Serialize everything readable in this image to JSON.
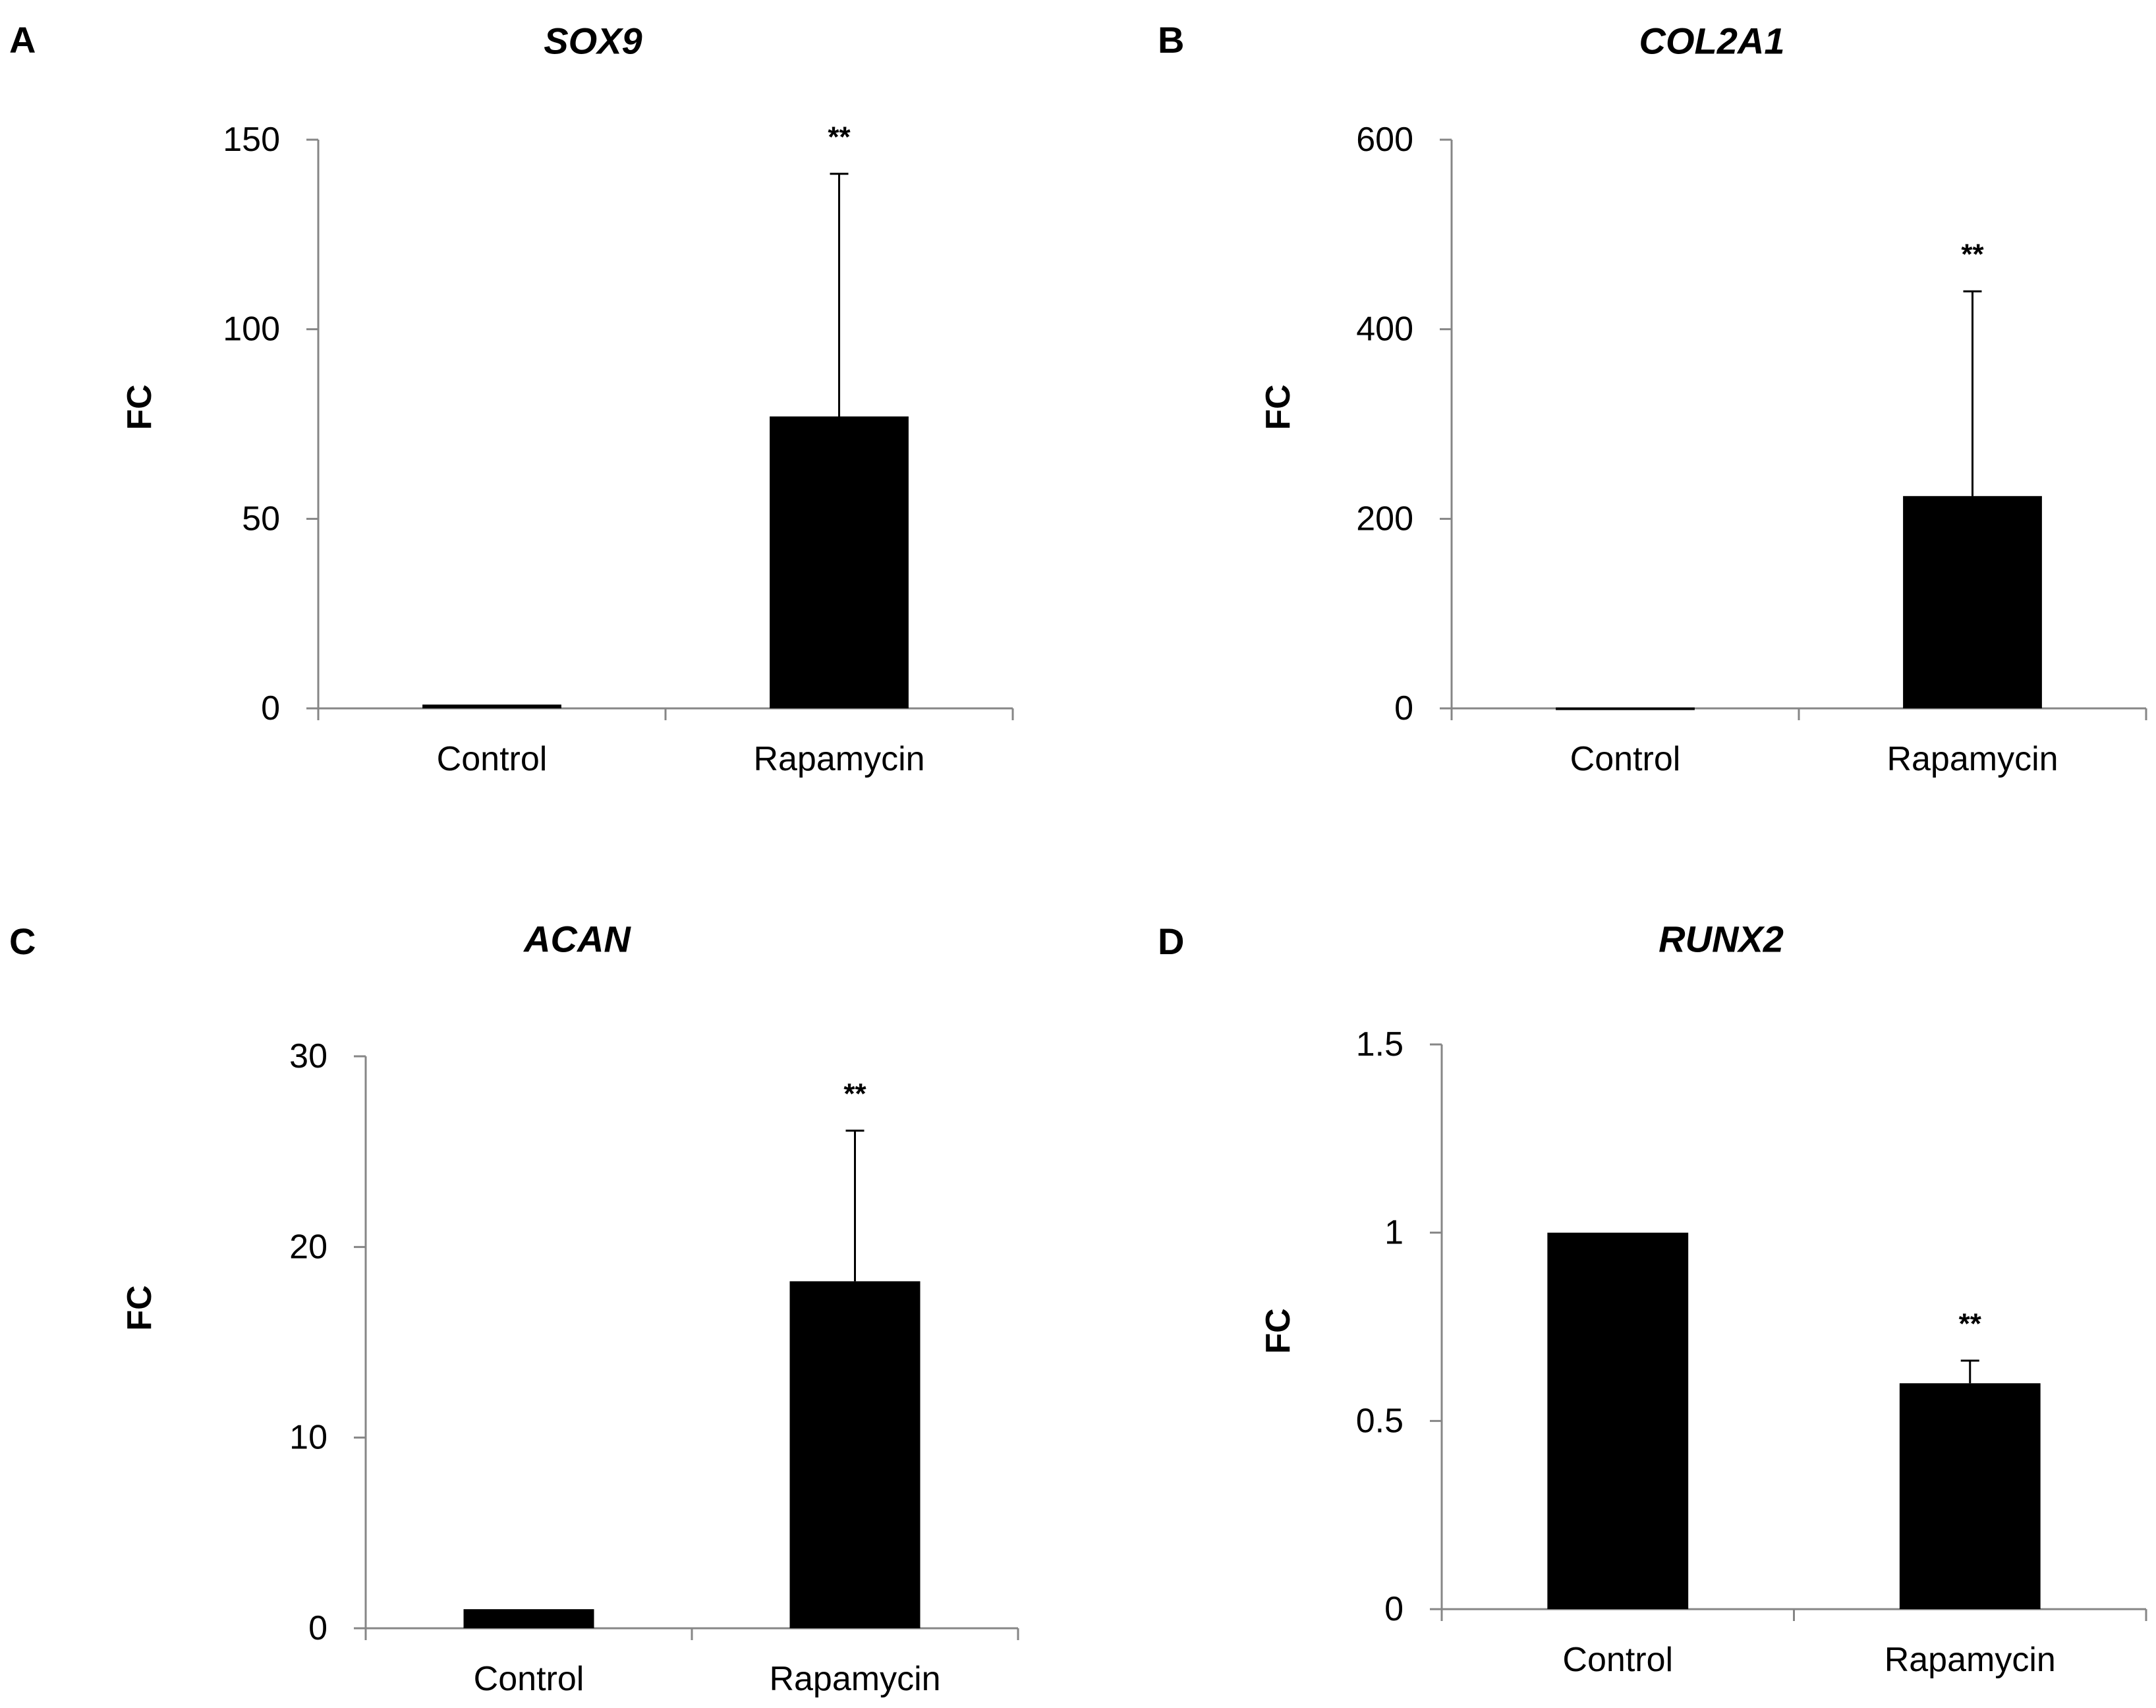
{
  "colors": {
    "bar": "#000000",
    "axis": "#868686",
    "error": "#000000",
    "text": "#000000"
  },
  "chart_data": [
    {
      "type": "bar",
      "panel": "A",
      "title": "SOX9",
      "ylabel": "FC",
      "xlabel": "",
      "categories": [
        "Control",
        "Rapamycin"
      ],
      "values": [
        1,
        77
      ],
      "error_upper": [
        0,
        141
      ],
      "significance": [
        "",
        "**"
      ],
      "ylim": [
        0,
        150
      ],
      "yticks": [
        0,
        50,
        100,
        150
      ],
      "ytick_labels": [
        "0",
        "50",
        "100",
        "150"
      ]
    },
    {
      "type": "bar",
      "panel": "B",
      "title": "COL2A1",
      "ylabel": "FC",
      "xlabel": "",
      "categories": [
        "Control",
        "Rapamycin"
      ],
      "values": [
        1,
        224
      ],
      "error_upper": [
        0,
        440
      ],
      "significance": [
        "",
        "**"
      ],
      "ylim": [
        0,
        600
      ],
      "yticks": [
        0,
        200,
        400,
        600
      ],
      "ytick_labels": [
        "0",
        "200",
        "400",
        "600"
      ]
    },
    {
      "type": "bar",
      "panel": "C",
      "title": "ACAN",
      "ylabel": "FC",
      "xlabel": "",
      "categories": [
        "Control",
        "Rapamycin"
      ],
      "values": [
        1,
        18.2
      ],
      "error_upper": [
        0,
        26.1
      ],
      "significance": [
        "",
        "**"
      ],
      "ylim": [
        0,
        30
      ],
      "yticks": [
        0,
        10,
        20,
        30
      ],
      "ytick_labels": [
        "0",
        "10",
        "20",
        "30"
      ]
    },
    {
      "type": "bar",
      "panel": "D",
      "title": "RUNX2",
      "ylabel": "FC",
      "xlabel": "",
      "categories": [
        "Control",
        "Rapamycin"
      ],
      "values": [
        1,
        0.6
      ],
      "error_upper": [
        0,
        0.66
      ],
      "significance": [
        "",
        "**"
      ],
      "ylim": [
        0,
        1.5
      ],
      "yticks": [
        0,
        0.5,
        1,
        1.5
      ],
      "ytick_labels": [
        "0",
        "0.5",
        "1",
        "1.5"
      ]
    }
  ]
}
